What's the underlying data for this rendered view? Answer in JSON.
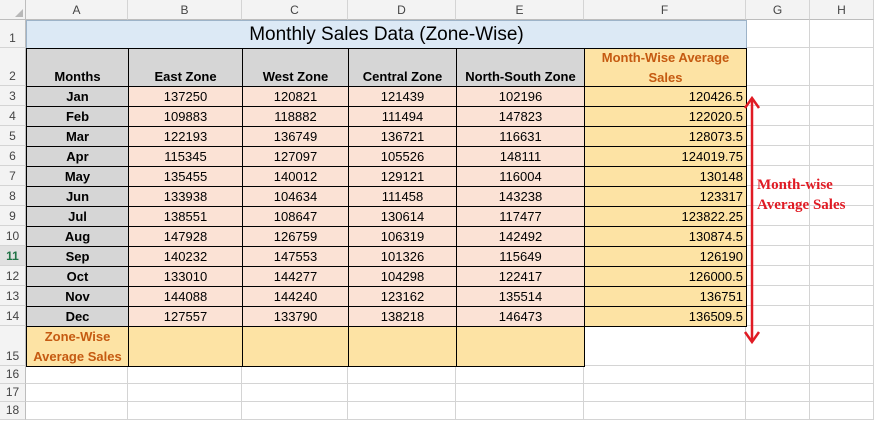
{
  "columns": [
    "A",
    "B",
    "C",
    "D",
    "E",
    "F",
    "G",
    "H"
  ],
  "rows": [
    "1",
    "2",
    "3",
    "4",
    "5",
    "6",
    "7",
    "8",
    "9",
    "10",
    "11",
    "12",
    "13",
    "14",
    "15",
    "16",
    "17",
    "18"
  ],
  "active_row": "11",
  "title": "Monthly Sales Data (Zone-Wise)",
  "headers": {
    "months": "Months",
    "zones": [
      "East Zone",
      "West Zone",
      "Central Zone",
      "North-South Zone"
    ],
    "month_avg": "Month-Wise Average Sales"
  },
  "data_rows": [
    {
      "month": "Jan",
      "values": [
        "137250",
        "120821",
        "121439",
        "102196"
      ],
      "avg": "120426.5"
    },
    {
      "month": "Feb",
      "values": [
        "109883",
        "118882",
        "111494",
        "147823"
      ],
      "avg": "122020.5"
    },
    {
      "month": "Mar",
      "values": [
        "122193",
        "136749",
        "136721",
        "116631"
      ],
      "avg": "128073.5"
    },
    {
      "month": "Apr",
      "values": [
        "115345",
        "127097",
        "105526",
        "148111"
      ],
      "avg": "124019.75"
    },
    {
      "month": "May",
      "values": [
        "135455",
        "140012",
        "129121",
        "116004"
      ],
      "avg": "130148"
    },
    {
      "month": "Jun",
      "values": [
        "133938",
        "104634",
        "111458",
        "143238"
      ],
      "avg": "123317"
    },
    {
      "month": "Jul",
      "values": [
        "138551",
        "108647",
        "130614",
        "117477"
      ],
      "avg": "123822.25"
    },
    {
      "month": "Aug",
      "values": [
        "147928",
        "126759",
        "106319",
        "142492"
      ],
      "avg": "130874.5"
    },
    {
      "month": "Sep",
      "values": [
        "140232",
        "147553",
        "101326",
        "115649"
      ],
      "avg": "126190"
    },
    {
      "month": "Oct",
      "values": [
        "133010",
        "144277",
        "104298",
        "122417"
      ],
      "avg": "126000.5"
    },
    {
      "month": "Nov",
      "values": [
        "144088",
        "144240",
        "123162",
        "135514"
      ],
      "avg": "136751"
    },
    {
      "month": "Dec",
      "values": [
        "127557",
        "133790",
        "138218",
        "146473"
      ],
      "avg": "136509.5"
    }
  ],
  "zone_avg_label": "Zone-Wise Average Sales",
  "annotation": "Month-wise Average Sales",
  "colors": {
    "annotation_red": "#e01b24",
    "orange_text": "#c55a11",
    "avg_fill": "#fde3a4",
    "data_fill": "#fbe2d5",
    "header_fill": "#d6d6d6",
    "title_fill": "#dce9f5"
  }
}
